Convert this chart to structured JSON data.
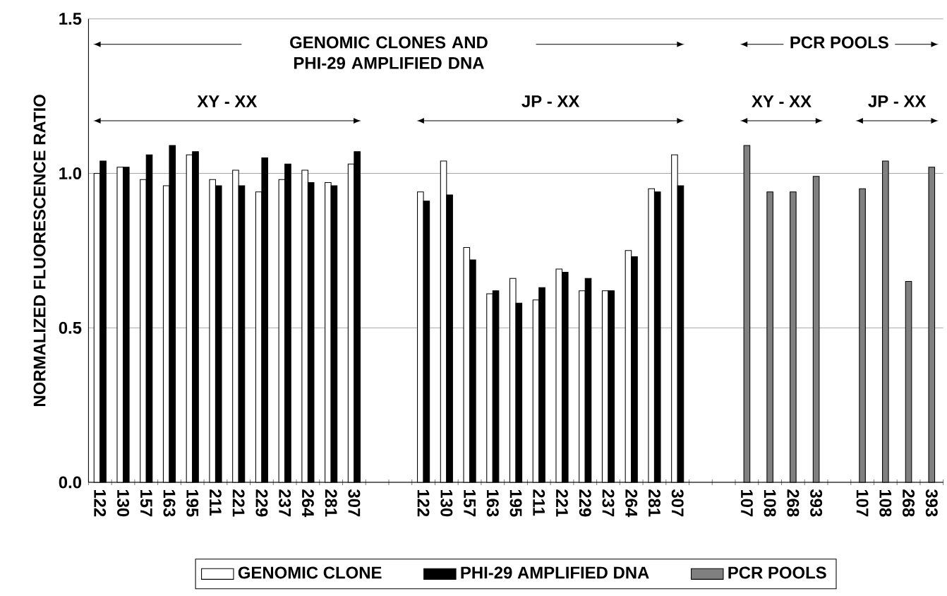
{
  "chart_data": {
    "type": "bar",
    "ylabel": "NORMALIZED FLUORESCENCE RATIO",
    "categories": [
      "122",
      "130",
      "157",
      "163",
      "195",
      "211",
      "221",
      "229",
      "237",
      "264",
      "281",
      "307",
      null,
      null,
      "122",
      "130",
      "157",
      "163",
      "195",
      "211",
      "221",
      "229",
      "237",
      "264",
      "281",
      "307",
      null,
      null,
      "107",
      "108",
      "268",
      "393",
      null,
      "107",
      "108",
      "268",
      "393"
    ],
    "series": [
      {
        "name": "GENOMIC CLONE",
        "color": "#ffffff",
        "values": [
          1.0,
          1.02,
          0.98,
          0.96,
          1.06,
          0.98,
          1.01,
          0.94,
          0.98,
          1.01,
          0.97,
          1.03,
          null,
          null,
          0.94,
          1.04,
          0.76,
          0.61,
          0.66,
          0.59,
          0.69,
          0.62,
          0.62,
          0.75,
          0.95,
          1.06,
          null,
          null,
          null,
          null,
          null,
          null,
          null,
          null,
          null,
          null,
          null
        ]
      },
      {
        "name": "PHI-29 AMPLIFIED DNA",
        "color": "#000000",
        "values": [
          1.04,
          1.02,
          1.06,
          1.09,
          1.07,
          0.96,
          0.96,
          1.05,
          1.03,
          0.97,
          0.96,
          1.07,
          null,
          null,
          0.91,
          0.93,
          0.72,
          0.62,
          0.58,
          0.63,
          0.68,
          0.66,
          0.62,
          0.73,
          0.94,
          0.96,
          null,
          null,
          null,
          null,
          null,
          null,
          null,
          null,
          null,
          null,
          null
        ]
      },
      {
        "name": "PCR POOLS",
        "color": "#808080",
        "values": [
          null,
          null,
          null,
          null,
          null,
          null,
          null,
          null,
          null,
          null,
          null,
          null,
          null,
          null,
          null,
          null,
          null,
          null,
          null,
          null,
          null,
          null,
          null,
          null,
          null,
          null,
          null,
          null,
          1.09,
          0.94,
          0.94,
          0.99,
          null,
          0.95,
          1.04,
          0.65,
          1.02
        ]
      }
    ],
    "ylim": [
      0,
      1.5
    ],
    "yticks": [
      {
        "value": 0,
        "label": "0.0"
      },
      {
        "value": 0.5,
        "label": "0.5"
      },
      {
        "value": 1.0,
        "label": "1.0"
      },
      {
        "value": 1.5,
        "label": "1.5"
      }
    ],
    "grid": "y",
    "legend": "bottom",
    "annotations": [
      "GENOMIC CLONES AND PHI-29 AMPLIFIED DNA",
      "XY - XX",
      "JP - XX",
      "PCR POOLS",
      "XY - XX",
      "JP - XX"
    ]
  }
}
